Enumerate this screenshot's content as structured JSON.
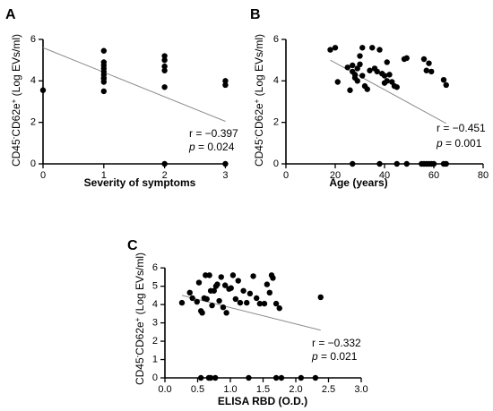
{
  "chart_data": [
    {
      "type": "scatter",
      "panel_label": "A",
      "xlabel": "Severity of symptoms",
      "ylabel_html": "CD45<tspan baseline-shift=\"super\" font-size=\"8\">-</tspan>CD62e<tspan baseline-shift=\"super\" font-size=\"8\">+</tspan> (Log EVs/ml)",
      "xlim": [
        0,
        3.2
      ],
      "ylim": [
        0,
        6
      ],
      "xticks": [
        0,
        1,
        2,
        3
      ],
      "yticks": [
        0,
        2,
        4,
        6
      ],
      "x": [
        0,
        1,
        1,
        1,
        1,
        1,
        1,
        1,
        1,
        1,
        1,
        2,
        2,
        2,
        2,
        2,
        2,
        3,
        3,
        3
      ],
      "y": [
        3.55,
        5.45,
        4.9,
        4.75,
        4.6,
        4.45,
        4.3,
        4.15,
        3.95,
        3.5,
        4.1,
        5.2,
        5.0,
        4.7,
        4.5,
        3.7,
        0,
        4.0,
        3.8,
        0
      ],
      "fit": {
        "x": [
          0,
          3
        ],
        "y": [
          5.6,
          2.05
        ]
      },
      "r": "r = −0.397",
      "p": "= 0.024"
    },
    {
      "type": "scatter",
      "panel_label": "B",
      "xlabel": "Age (years)",
      "ylabel_html": "CD45<tspan baseline-shift=\"super\" font-size=\"8\">-</tspan>CD62e<tspan baseline-shift=\"super\" font-size=\"8\">+</tspan> (Log EVs/ml)",
      "xlim": [
        0,
        80
      ],
      "ylim": [
        0,
        6
      ],
      "xticks": [
        0,
        20,
        40,
        60,
        80
      ],
      "yticks": [
        0,
        2,
        4,
        6
      ],
      "x": [
        18,
        20,
        21,
        25,
        26,
        27,
        27,
        28,
        28,
        29,
        29,
        30,
        30,
        31,
        31,
        32,
        33,
        34,
        35,
        36,
        37,
        38,
        39,
        40,
        40,
        41,
        41,
        42,
        43,
        44,
        45,
        48,
        49,
        56,
        57,
        58,
        59,
        64,
        65,
        27,
        38,
        45,
        49,
        55,
        56,
        57,
        58,
        59,
        60,
        64,
        65
      ],
      "y": [
        5.5,
        5.6,
        3.95,
        4.65,
        3.55,
        4.75,
        4.45,
        4.3,
        4.15,
        4.0,
        4.6,
        5.2,
        4.8,
        5.6,
        4.25,
        3.75,
        3.6,
        4.5,
        5.6,
        4.6,
        4.45,
        5.5,
        4.35,
        4.25,
        3.9,
        4.9,
        4.0,
        4.3,
        3.95,
        3.75,
        3.7,
        5.05,
        5.1,
        5.05,
        4.5,
        4.85,
        4.45,
        4.05,
        3.8,
        0,
        0,
        0,
        0,
        0,
        0,
        0,
        0,
        0,
        0,
        0,
        0
      ],
      "fit": {
        "x": [
          18,
          65
        ],
        "y": [
          5.0,
          1.95
        ]
      },
      "r": "r = −0.451",
      "p": "= 0.001"
    },
    {
      "type": "scatter",
      "panel_label": "C",
      "xlabel": "ELISA RBD (O.D.)",
      "ylabel_html": "CD45<tspan baseline-shift=\"super\" font-size=\"8\">-</tspan>CD62e<tspan baseline-shift=\"super\" font-size=\"8\">+</tspan> (Log EVs/ml)",
      "xlim": [
        0,
        3.0
      ],
      "ylim": [
        0,
        6.4
      ],
      "xticks": [
        0,
        0.5,
        1.0,
        1.5,
        2.0,
        2.5,
        3.0
      ],
      "yticks": [
        0,
        1,
        2,
        3,
        4,
        5,
        6
      ],
      "xtick_labels": [
        "0.0",
        "0.5",
        "1.0",
        "1.5",
        "2.0",
        "2.5",
        "3.0"
      ],
      "x": [
        0.26,
        0.38,
        0.42,
        0.49,
        0.52,
        0.55,
        0.57,
        0.6,
        0.62,
        0.64,
        0.68,
        0.7,
        0.72,
        0.75,
        0.78,
        0.8,
        0.83,
        0.86,
        0.89,
        0.92,
        0.94,
        0.98,
        1.01,
        1.04,
        1.08,
        1.12,
        1.15,
        1.2,
        1.25,
        1.3,
        1.35,
        1.4,
        1.45,
        1.52,
        1.56,
        1.6,
        1.63,
        1.65,
        1.7,
        1.75,
        2.38,
        0.55,
        0.67,
        0.7,
        0.77,
        1.28,
        1.7,
        1.78,
        2.08,
        2.3
      ],
      "y": [
        4.1,
        4.65,
        4.35,
        4.15,
        5.2,
        3.65,
        3.55,
        4.35,
        5.6,
        4.3,
        5.6,
        4.75,
        3.95,
        4.75,
        5.0,
        5.1,
        4.2,
        5.5,
        3.85,
        5.05,
        3.55,
        4.85,
        4.9,
        5.6,
        4.3,
        5.3,
        4.1,
        4.75,
        4.1,
        4.6,
        5.55,
        4.35,
        4.05,
        4.05,
        5.1,
        4.65,
        5.6,
        5.45,
        4.05,
        3.8,
        4.4,
        0,
        0,
        0,
        0,
        0,
        0,
        0,
        0,
        0
      ],
      "fit": {
        "x": [
          0.26,
          2.38
        ],
        "y": [
          4.5,
          2.6
        ]
      },
      "r": "r = −0.332",
      "p": "= 0.021"
    }
  ]
}
